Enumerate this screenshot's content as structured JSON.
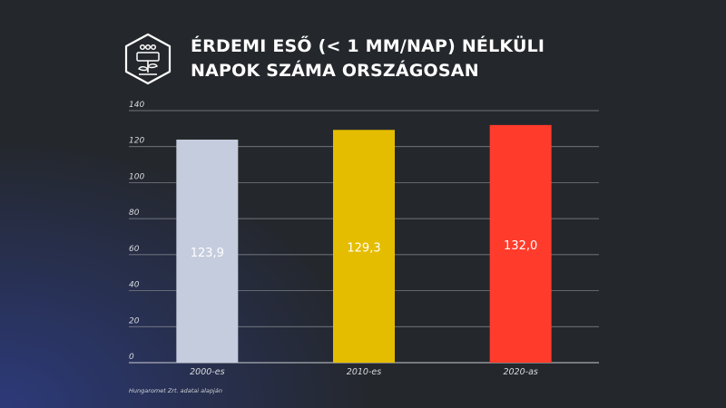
{
  "header": {
    "title_line1": "ÉRDEMI ESŐ (< 1 MM/NAP) NÉLKÜLI",
    "title_line2": "NAPOK SZÁMA ORSZÁGOSAN",
    "logo_icon": "plant-drought-hexagon-icon"
  },
  "chart_data": {
    "type": "bar",
    "categories": [
      "2000-es",
      "2010-es",
      "2020-as"
    ],
    "values": [
      123.9,
      129.3,
      132.0
    ],
    "value_labels": [
      "123,9",
      "129,3",
      "132,0"
    ],
    "colors": [
      "#c5ccdd",
      "#e5bd00",
      "#ff3b2b"
    ],
    "yticks": [
      "0",
      "20",
      "40",
      "60",
      "80",
      "100",
      "120",
      "140"
    ],
    "ylim": [
      0,
      140
    ],
    "grid": true,
    "title": "",
    "xlabel": "",
    "ylabel": ""
  },
  "footer": {
    "source": "Hungaromet Zrt. adatai alapján"
  }
}
